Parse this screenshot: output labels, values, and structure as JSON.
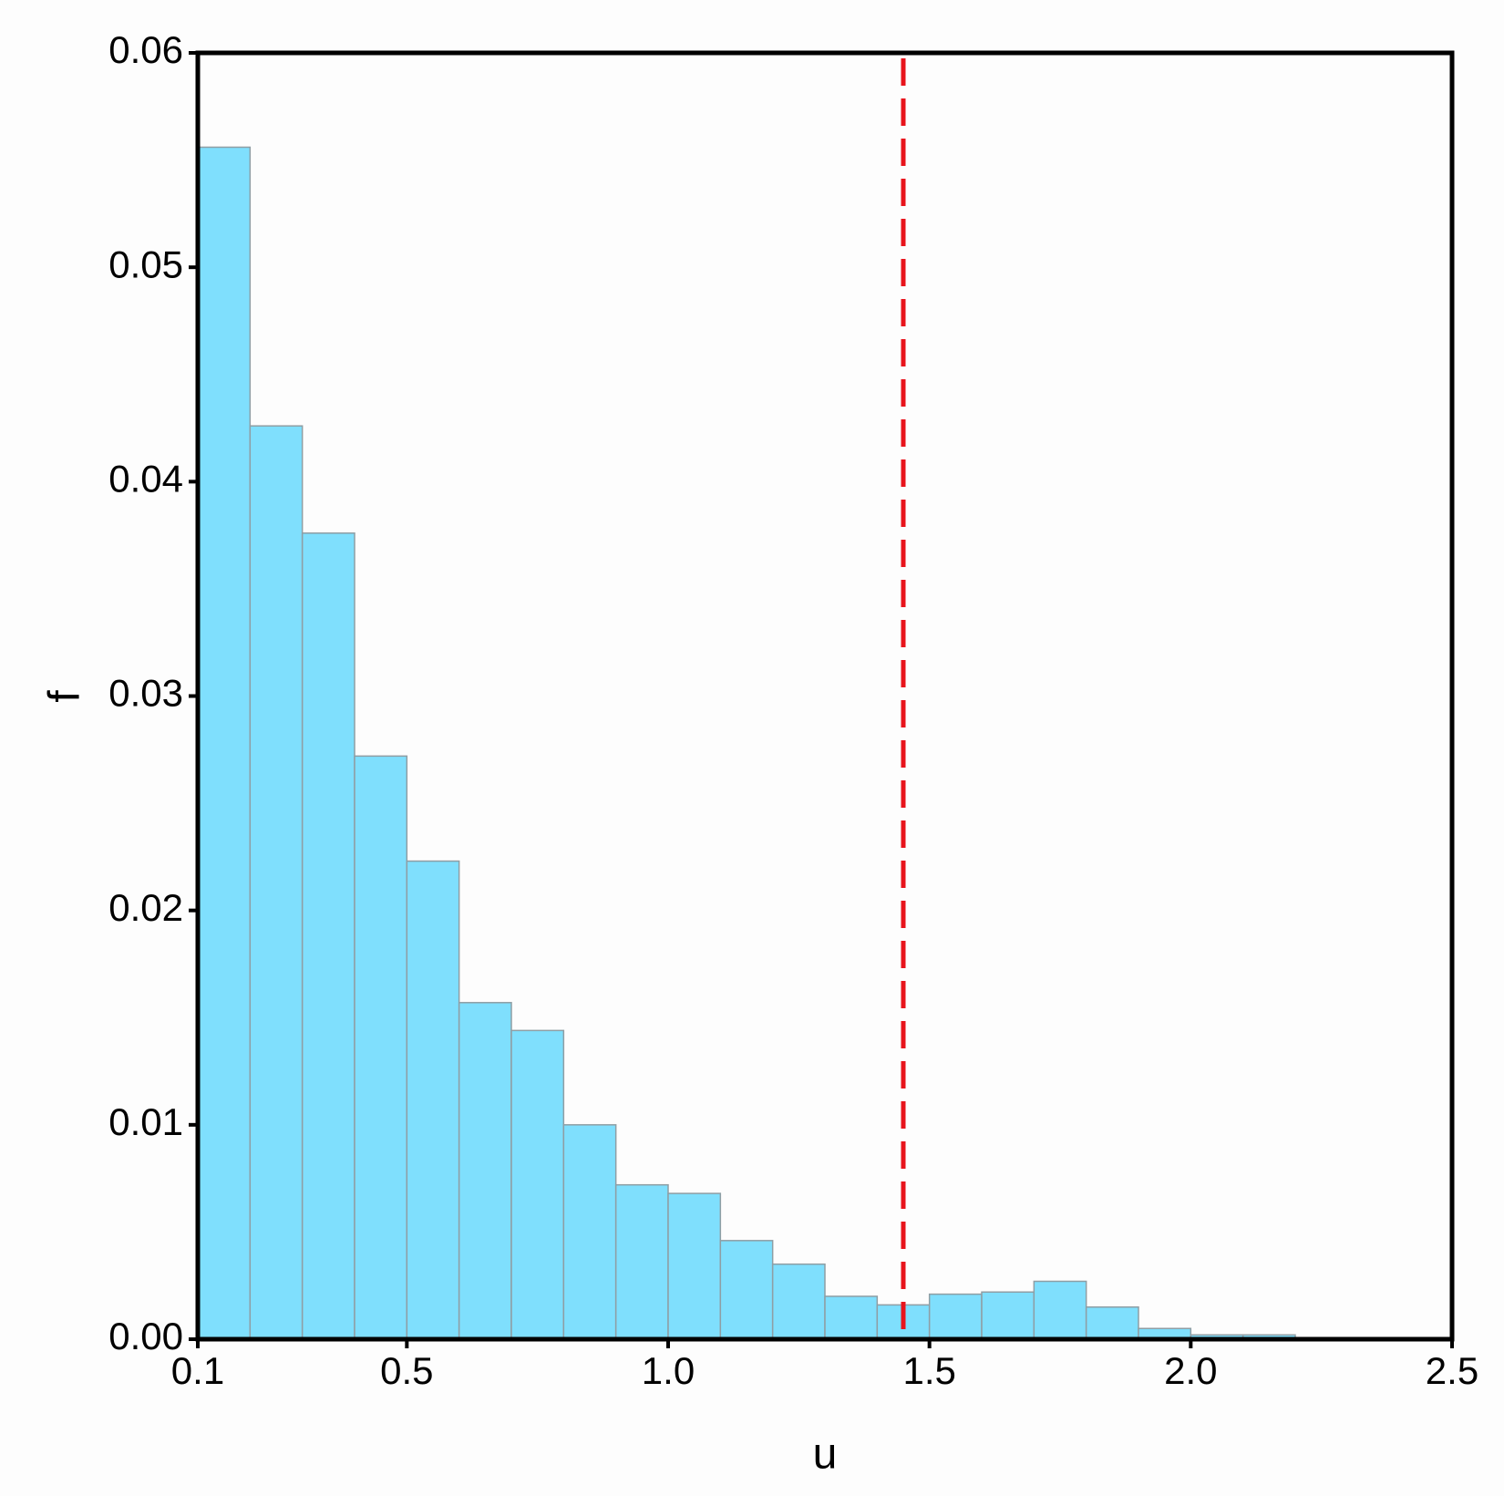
{
  "chart_data": {
    "type": "histogram",
    "bins": [
      0.1,
      0.2,
      0.3,
      0.4,
      0.5,
      0.6,
      0.7,
      0.8,
      0.9,
      1.0,
      1.1,
      1.2,
      1.3,
      1.4,
      1.5,
      1.6,
      1.7,
      1.8,
      1.9,
      2.0,
      2.1,
      2.2
    ],
    "values": [
      0.0556,
      0.0426,
      0.0376,
      0.0272,
      0.0223,
      0.0157,
      0.0144,
      0.01,
      0.0072,
      0.0068,
      0.0046,
      0.0035,
      0.002,
      0.0016,
      0.0021,
      0.0022,
      0.0027,
      0.0015,
      0.0005,
      0.0002,
      0.0002
    ],
    "color": "#7fdffd",
    "x_label": "u",
    "y_label": "f",
    "xlim": [
      0.1,
      2.5
    ],
    "xticks": [
      0.1,
      0.5,
      {
        "value": 1,
        "label": "1.0"
      },
      1.5,
      {
        "value": 2,
        "label": "2.0"
      },
      2.5
    ],
    "ylim": [
      0,
      0.06
    ],
    "yticks": [
      {
        "value": 0,
        "label": "0.00"
      },
      {
        "value": 0.01,
        "label": "0.01"
      },
      {
        "value": 0.02,
        "label": "0.02"
      },
      {
        "value": 0.03,
        "label": "0.03"
      },
      {
        "value": 0.04,
        "label": "0.04"
      },
      {
        "value": 0.05,
        "label": "0.05"
      },
      {
        "value": 0.06,
        "label": "0.06"
      }
    ],
    "vline": {
      "x": 1.45,
      "color": "#e8141c"
    }
  }
}
